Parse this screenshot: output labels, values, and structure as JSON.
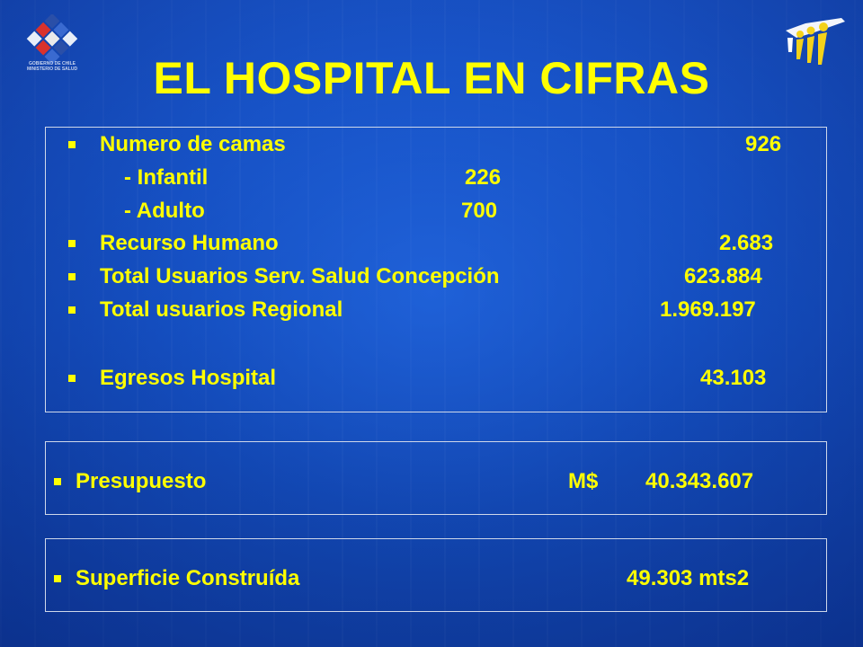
{
  "title": "EL HOSPITAL EN CIFRAS",
  "logo_left": {
    "icon": "government-chile-logo",
    "line1": "GOBIERNO DE CHILE",
    "line2": "MINISTERIO DE SALUD"
  },
  "logo_right": {
    "icon": "people-figures-logo"
  },
  "stats": {
    "camas_label": "Numero de camas",
    "camas_value": "926",
    "infantil_label": "- Infantil",
    "infantil_value": "226",
    "adulto_label": "- Adulto",
    "adulto_value": "700",
    "rrhh_label": "Recurso Humano",
    "rrhh_value": "2.683",
    "usuarios_serv_label": "Total Usuarios Serv. Salud Concepción",
    "usuarios_serv_value": "623.884",
    "usuarios_reg_label": "Total usuarios  Regional",
    "usuarios_reg_value": "1.969.197",
    "egresos_label": "Egresos Hospital",
    "egresos_value": "43.103"
  },
  "budget": {
    "label": "Presupuesto",
    "currency": "M$",
    "value": "40.343.607"
  },
  "surface": {
    "label": "Superficie Construída",
    "value": "49.303 mts2"
  },
  "colors": {
    "background": "#1650c0",
    "text": "#ffff00",
    "border": "#cfd8ea"
  }
}
